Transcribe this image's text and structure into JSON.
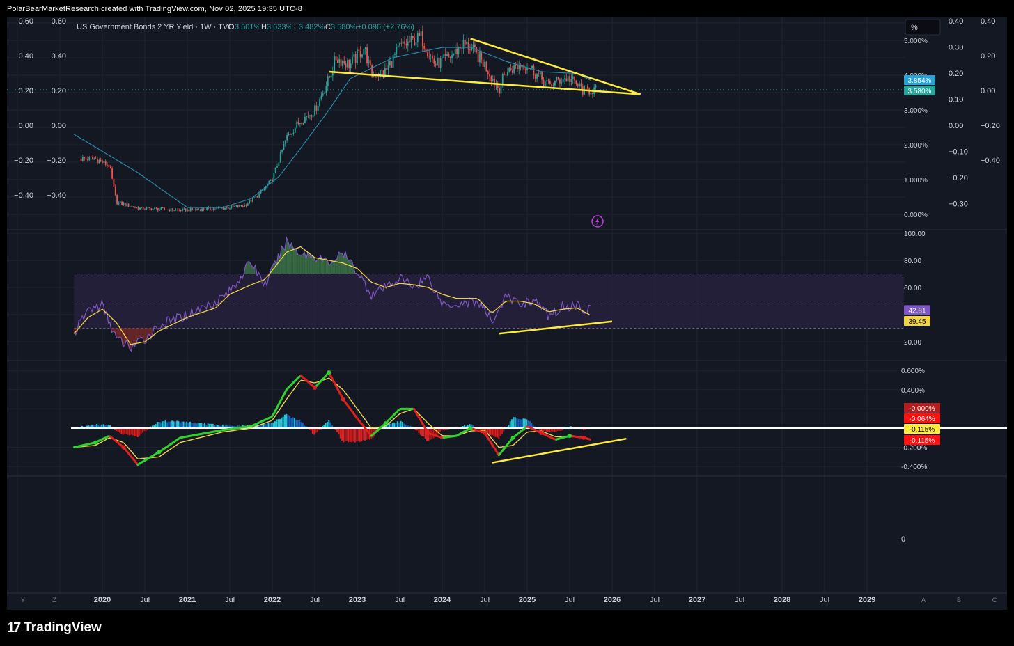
{
  "header": {
    "credit": "PolarBearMarketResearch created with TradingView.com, Nov 02, 2025 19:35 UTC-8"
  },
  "brand": {
    "mark": "17",
    "name": "TradingView",
    "logo_icon": "tradingview-logo-icon"
  },
  "legend": {
    "symbol": "US Government Bonds 2 YR Yield · 1W · TVC",
    "o_label": "O",
    "o_value": "3.501%",
    "h_label": "H",
    "h_value": "3.633%",
    "l_label": "L",
    "l_value": "3.482%",
    "c_label": "C",
    "c_value": "3.580%",
    "change": "+0.096 (+2.76%)"
  },
  "controls": {
    "percent_button": "%",
    "flash_icon": "lightning-icon",
    "corner_left": [
      "Y",
      "Z"
    ],
    "corner_right": [
      "A",
      "B",
      "C"
    ]
  },
  "colors": {
    "background": "#141823",
    "up": "#26a69a",
    "down": "#ef5350",
    "trendline": "#ffeb3b",
    "ema": "#2c86a6",
    "rsi": "#7e57c2",
    "rsi_ma": "#f0d44a",
    "rsi_band": "#2a2140",
    "macd_green": "#2fd12f",
    "macd_red": "#e02020",
    "zero_line": "#ffffff"
  },
  "chart_data": [
    {
      "type": "candlestick",
      "panel": "price",
      "title": "US Government Bonds 2 YR Yield · 1W · TVC",
      "unit": "%",
      "x_ticks": [
        "2020",
        "Jul",
        "2021",
        "Jul",
        "2022",
        "Jul",
        "2023",
        "Jul",
        "2024",
        "Jul",
        "2025",
        "Jul",
        "2026",
        "Jul",
        "2027",
        "Jul",
        "2028",
        "Jul",
        "2029"
      ],
      "xlim": [
        "2019-09",
        "2029-12"
      ],
      "ylim": [
        -0.3,
        5.6
      ],
      "y_ticks_right": [
        "5.000%",
        "4.000%",
        "3.000%",
        "2.000%",
        "1.000%",
        "0.000%"
      ],
      "y_ticks_left_outer": [
        "0.60",
        "0.40",
        "0.20",
        "0.00",
        "−0.20",
        "−0.40"
      ],
      "y_ticks_left_inner": [
        "0.60",
        "0.40",
        "0.20",
        "0.00",
        "−0.20",
        "−0.40"
      ],
      "y_ticks_right_inner": [
        "0.40",
        "0.30",
        "0.20",
        "0.10",
        "0.00",
        "−0.10",
        "−0.20",
        "−0.30"
      ],
      "y_ticks_right_outer": [
        "0.40",
        "0.20",
        "0.00",
        "−0.20",
        "−0.40"
      ],
      "series": [
        {
          "kind": "close",
          "x": [
            "2019-10",
            "2019-12",
            "2020-02",
            "2020-03",
            "2020-06",
            "2020-12",
            "2021-06",
            "2021-09",
            "2021-11",
            "2022-01",
            "2022-03",
            "2022-05",
            "2022-07",
            "2022-09",
            "2022-10",
            "2022-12",
            "2023-02",
            "2023-03",
            "2023-05",
            "2023-07",
            "2023-09",
            "2023-10",
            "2023-12",
            "2024-02",
            "2024-04",
            "2024-05",
            "2024-07",
            "2024-09",
            "2024-10",
            "2024-12",
            "2025-01",
            "2025-03",
            "2025-04",
            "2025-06",
            "2025-07",
            "2025-09",
            "2025-10"
          ],
          "y": [
            1.6,
            1.6,
            1.4,
            0.35,
            0.18,
            0.12,
            0.18,
            0.25,
            0.55,
            1.0,
            2.2,
            2.7,
            3.0,
            3.9,
            4.5,
            4.3,
            4.8,
            4.0,
            4.1,
            4.8,
            5.0,
            5.1,
            4.3,
            4.5,
            4.9,
            4.8,
            4.3,
            3.6,
            4.1,
            4.3,
            4.3,
            3.9,
            3.7,
            3.9,
            3.9,
            3.55,
            3.58
          ]
        },
        {
          "kind": "moving_average",
          "x": [
            "2019-09",
            "2020-06",
            "2021-01",
            "2021-06",
            "2021-10",
            "2022-02",
            "2022-05",
            "2022-09",
            "2022-12",
            "2023-06",
            "2024-01",
            "2024-05",
            "2024-10",
            "2025-03",
            "2025-08",
            "2025-10"
          ],
          "y": [
            2.3,
            1.2,
            0.2,
            0.2,
            0.45,
            1.1,
            1.9,
            3.0,
            3.9,
            4.5,
            4.8,
            4.8,
            4.4,
            4.1,
            4.05,
            3.85
          ]
        }
      ],
      "trendlines": [
        {
          "from": [
            "2022-09",
            4.1
          ],
          "to": [
            "2026-05",
            3.45
          ]
        },
        {
          "from": [
            "2024-05",
            5.05
          ],
          "to": [
            "2026-05",
            3.45
          ]
        }
      ],
      "price_labels": [
        "3.854%",
        "3.580%"
      ]
    },
    {
      "type": "line",
      "panel": "rsi",
      "ylim": [
        10,
        105
      ],
      "y_ticks": [
        "100.00",
        "80.00",
        "60.00",
        "20.00"
      ],
      "band": [
        30,
        70
      ],
      "mid_levels": [
        50,
        30
      ],
      "x": [
        "2019-09",
        "2019-11",
        "2020-01",
        "2020-03",
        "2020-05",
        "2020-07",
        "2020-09",
        "2021-01",
        "2021-05",
        "2021-07",
        "2021-10",
        "2021-12",
        "2022-03",
        "2022-05",
        "2022-07",
        "2022-09",
        "2022-11",
        "2023-01",
        "2023-03",
        "2023-05",
        "2023-07",
        "2023-09",
        "2023-11",
        "2024-01",
        "2024-03",
        "2024-06",
        "2024-08",
        "2024-10",
        "2024-12",
        "2025-02",
        "2025-04",
        "2025-06",
        "2025-08",
        "2025-10"
      ],
      "series": [
        {
          "name": "",
          "values": [
            26,
            44,
            47,
            22,
            16,
            22,
            32,
            40,
            50,
            57,
            79,
            62,
            94,
            85,
            83,
            78,
            85,
            72,
            55,
            60,
            67,
            61,
            68,
            48,
            48,
            50,
            35,
            53,
            48,
            51,
            39,
            46,
            47,
            42.81
          ]
        },
        {
          "name": "",
          "values": [
            26,
            38,
            44,
            34,
            18,
            20,
            28,
            38,
            45,
            55,
            62,
            66,
            86,
            90,
            82,
            80,
            78,
            74,
            64,
            60,
            63,
            62,
            60,
            55,
            52,
            52,
            41,
            50,
            50,
            48,
            42,
            44,
            45,
            39.45
          ]
        }
      ],
      "trendline": {
        "from": [
          "2024-09",
          26
        ],
        "to": [
          "2026-01",
          35
        ]
      },
      "value_labels": [
        "42.81",
        "39.45"
      ]
    },
    {
      "type": "line",
      "panel": "macd",
      "ylim": [
        -0.45,
        0.65
      ],
      "y_ticks": [
        "0.600%",
        "0.400%",
        "-0.200%",
        "-0.400%"
      ],
      "x": [
        "2019-09",
        "2019-12",
        "2020-02",
        "2020-04",
        "2020-06",
        "2020-09",
        "2020-12",
        "2021-06",
        "2021-10",
        "2022-01",
        "2022-03",
        "2022-05",
        "2022-07",
        "2022-09",
        "2022-11",
        "2023-01",
        "2023-03",
        "2023-05",
        "2023-07",
        "2023-09",
        "2023-11",
        "2024-01",
        "2024-03",
        "2024-05",
        "2024-07",
        "2024-09",
        "2024-11",
        "2025-01",
        "2025-03",
        "2025-05",
        "2025-07",
        "2025-09",
        "2025-10"
      ],
      "series": [
        {
          "name": "",
          "values": [
            -0.2,
            -0.15,
            -0.08,
            -0.2,
            -0.38,
            -0.25,
            -0.1,
            -0.02,
            0.02,
            0.12,
            0.4,
            0.55,
            0.42,
            0.58,
            0.3,
            0.1,
            -0.08,
            0.05,
            0.2,
            0.2,
            -0.05,
            -0.1,
            -0.08,
            0.0,
            -0.05,
            -0.28,
            -0.1,
            0.02,
            -0.05,
            -0.12,
            -0.08,
            -0.1,
            -0.12
          ]
        },
        {
          "name": "",
          "values": [
            -0.2,
            -0.18,
            -0.1,
            -0.15,
            -0.32,
            -0.3,
            -0.15,
            -0.04,
            0.0,
            0.08,
            0.3,
            0.5,
            0.47,
            0.52,
            0.4,
            0.2,
            0.0,
            0.02,
            0.15,
            0.2,
            0.05,
            -0.08,
            -0.08,
            -0.03,
            -0.02,
            -0.2,
            -0.18,
            -0.04,
            -0.03,
            -0.09,
            -0.09,
            -0.09,
            -0.12
          ]
        }
      ],
      "histogram_note": "",
      "trendline": {
        "from": [
          "2024-08",
          -0.36
        ],
        "to": [
          "2026-03",
          -0.11
        ]
      },
      "value_labels": [
        "-0.000%",
        "-0.064%",
        "-0.115%",
        "-0.115%"
      ]
    },
    {
      "type": "line",
      "panel": "empty",
      "y_ticks": [
        "0"
      ]
    }
  ]
}
